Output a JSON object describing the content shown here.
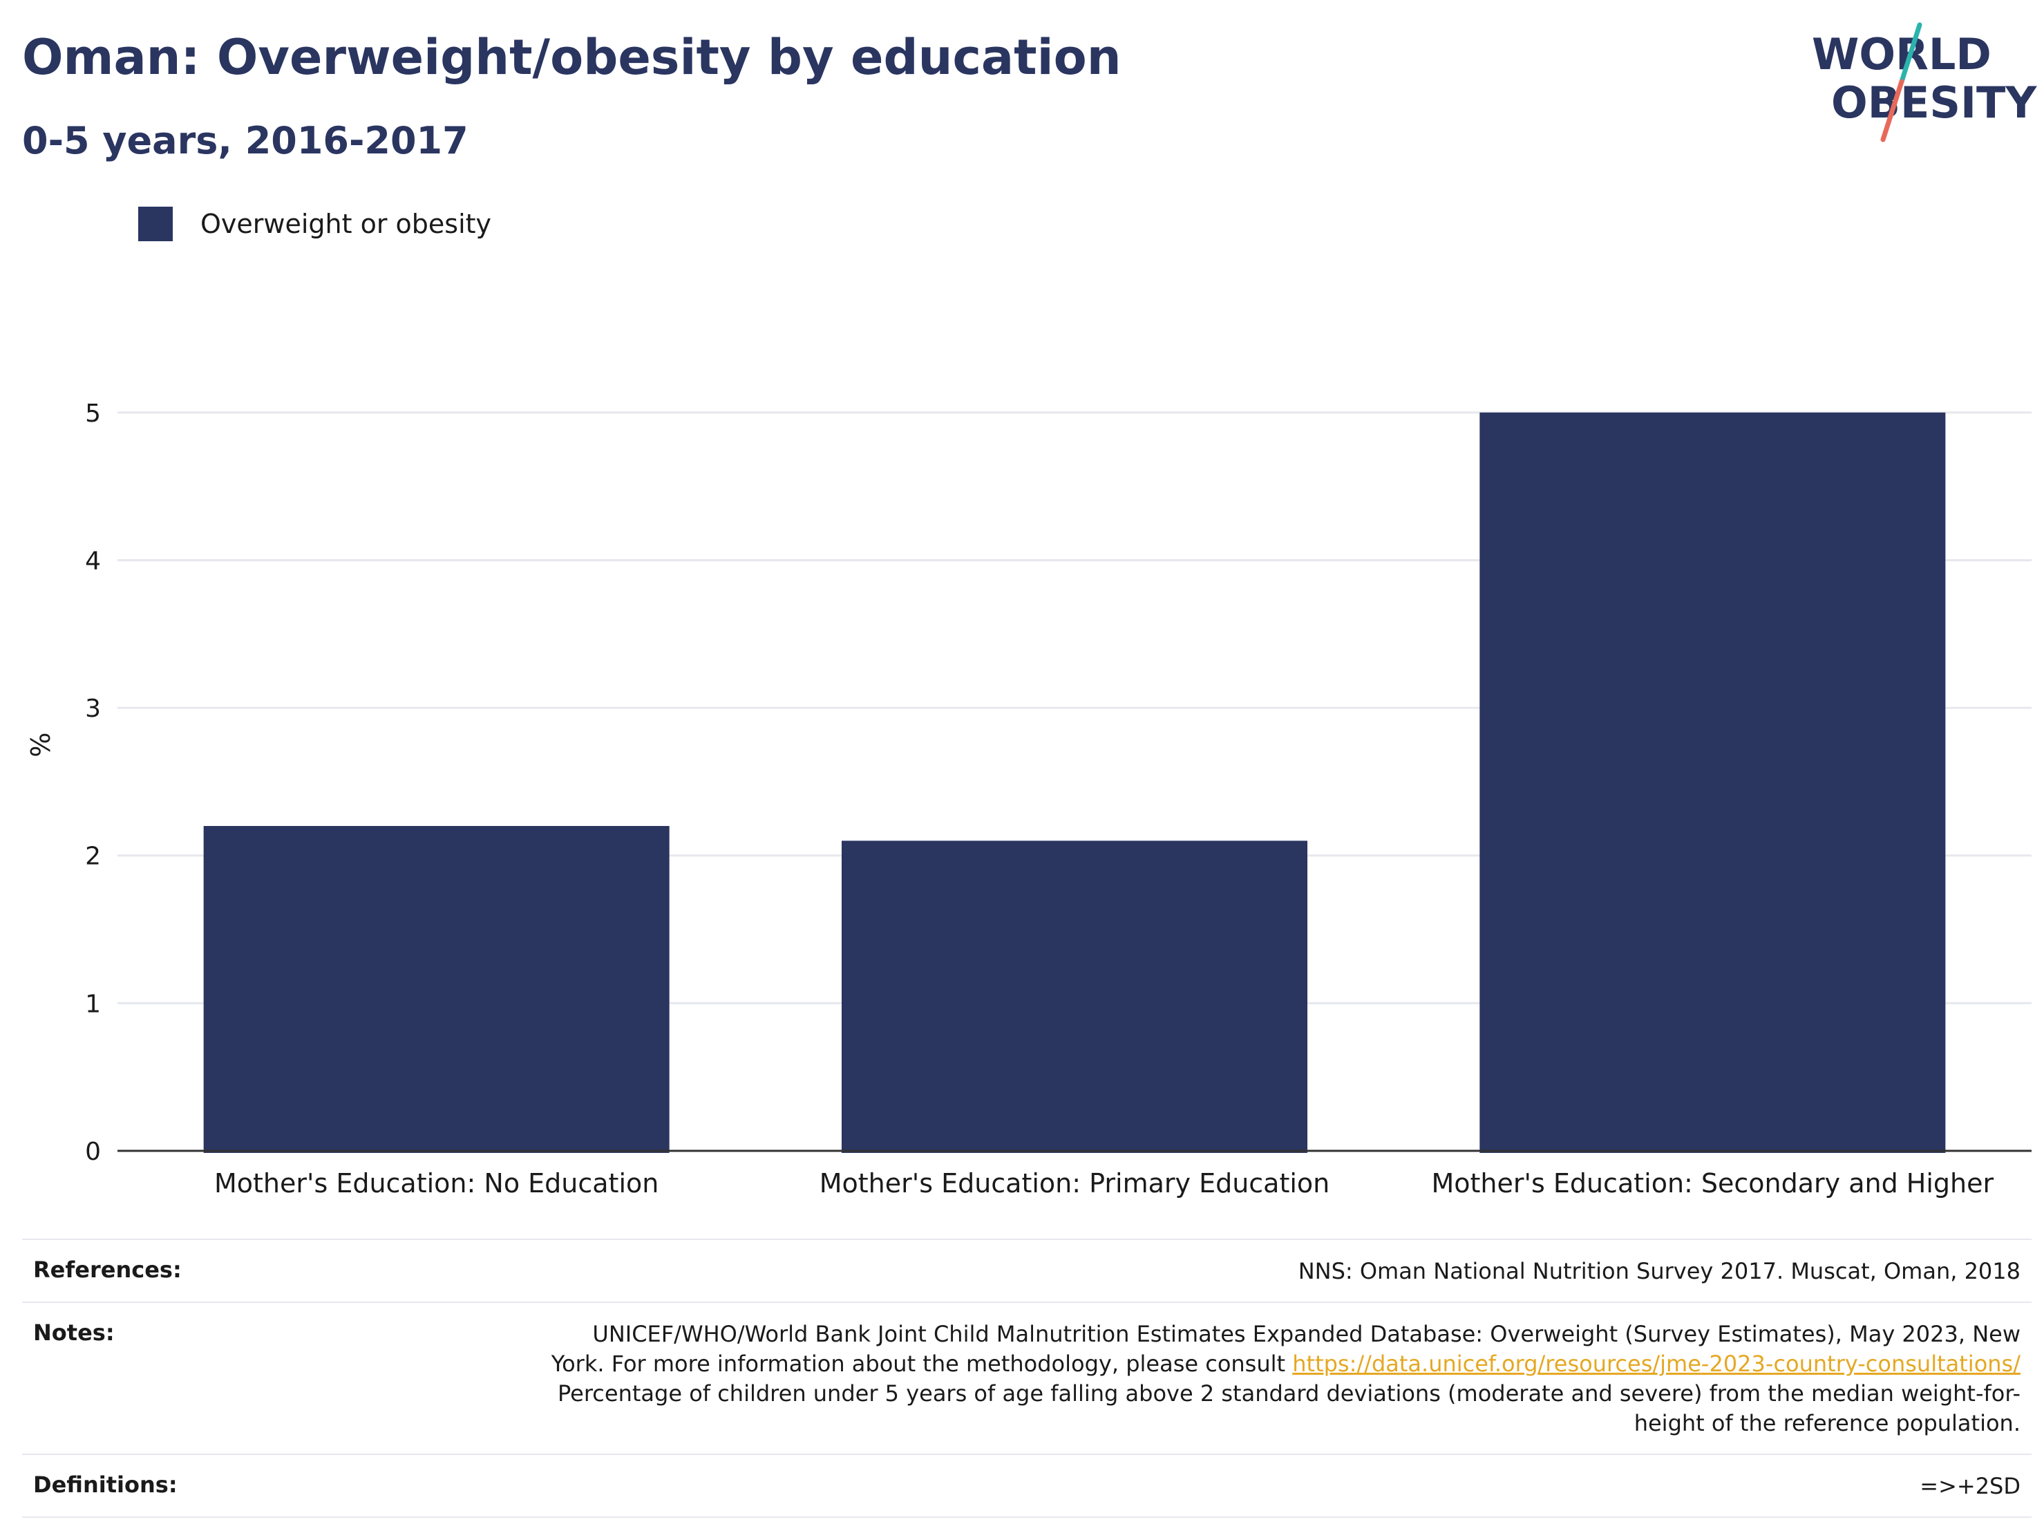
{
  "header": {
    "title": "Oman: Overweight/obesity by education",
    "subtitle": "0-5 years, 2016-2017"
  },
  "logo": {
    "line1": "WORLD",
    "line2": "OBESITY",
    "colors": {
      "text": "#2a3560",
      "teal": "#2bb3ad",
      "coral": "#e8695a"
    }
  },
  "chart_data": {
    "type": "bar",
    "title": "Oman: Overweight/obesity by education",
    "subtitle": "0-5 years, 2016-2017",
    "ylabel": "%",
    "xlabel": "",
    "ylim": [
      0,
      5.5
    ],
    "yticks": [
      0,
      1,
      2,
      3,
      4,
      5
    ],
    "grid": true,
    "legend_position": "top-left",
    "categories": [
      "Mother's Education: No Education",
      "Mother's Education: Primary Education",
      "Mother's Education: Secondary and Higher"
    ],
    "series": [
      {
        "name": "Overweight or obesity",
        "color": "#2a3560",
        "values": [
          2.2,
          2.1,
          5.0
        ]
      }
    ]
  },
  "footer": {
    "references": {
      "label": "References:",
      "text": "NNS: Oman National Nutrition Survey 2017. Muscat, Oman, 2018"
    },
    "notes": {
      "label": "Notes:",
      "line1": "UNICEF/WHO/World Bank Joint Child Malnutrition Estimates Expanded Database: Overweight (Survey Estimates), May 2023, New",
      "line2_prefix": "York. For more information about the methodology, please consult ",
      "link": "https://data.unicef.org/resources/jme-2023-country-consultations/",
      "line3": "Percentage of children under 5 years of age falling above 2 standard deviations (moderate and severe) from the median weight-for-",
      "line4": "height of the reference population."
    },
    "definitions": {
      "label": "Definitions:",
      "text": "=>+2SD"
    },
    "link_color": "#e5a823"
  }
}
